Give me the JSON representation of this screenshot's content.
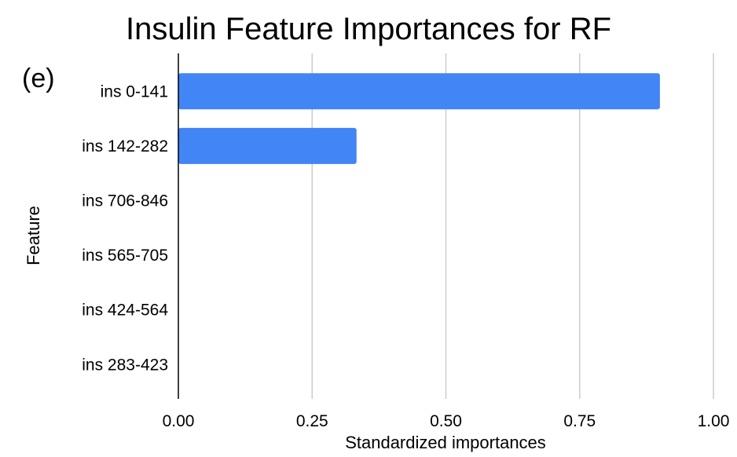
{
  "chart_data": {
    "type": "bar",
    "orientation": "horizontal",
    "title": "Insulin Feature Importances for RF",
    "panel_label": "(e)",
    "xlabel": "Standardized importances",
    "ylabel": "Feature",
    "categories": [
      "ins 0-141",
      "ins 142-282",
      "ins 706-846",
      "ins 565-705",
      "ins 424-564",
      "ins 283-423"
    ],
    "values": [
      0.9,
      0.333,
      0.0,
      0.0,
      0.0,
      0.0
    ],
    "xlim": [
      0,
      1
    ],
    "x_ticks": [
      "0.00",
      "0.25",
      "0.50",
      "0.75",
      "1.00"
    ],
    "grid": "vertical",
    "legend": "none",
    "colors": {
      "bar": "#4285f4",
      "grid": "#cccccc",
      "axis": "#000000"
    }
  }
}
